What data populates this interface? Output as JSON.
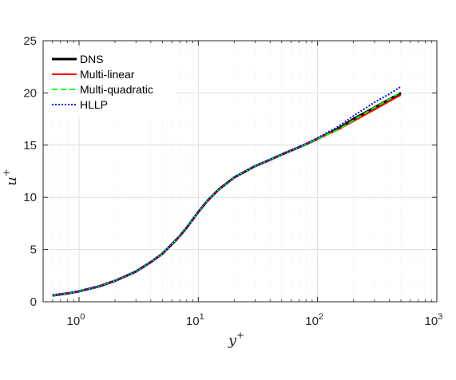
{
  "chart_data": {
    "type": "line",
    "title": "",
    "xlabel": "y+",
    "ylabel": "u+",
    "xscale": "log",
    "xlim": [
      0.5,
      1000
    ],
    "ylim": [
      0,
      25
    ],
    "grid": true,
    "legend_position": "top-left",
    "x_ticks": [
      1,
      10,
      100,
      1000
    ],
    "x_tick_labels": [
      {
        "base": "10",
        "exp": "0"
      },
      {
        "base": "10",
        "exp": "1"
      },
      {
        "base": "10",
        "exp": "2"
      },
      {
        "base": "10",
        "exp": "3"
      }
    ],
    "y_ticks": [
      0,
      5,
      10,
      15,
      20,
      25
    ],
    "y_tick_labels": [
      "0",
      "5",
      "10",
      "15",
      "20",
      "25"
    ],
    "series": [
      {
        "name": "DNS",
        "color": "#000000",
        "style": "solid",
        "x": [
          0.6,
          0.8,
          1,
          1.5,
          2,
          3,
          4,
          5,
          6,
          7,
          8,
          10,
          12,
          15,
          20,
          25,
          30,
          40,
          50,
          70,
          100,
          150,
          200,
          300,
          400,
          500
        ],
        "y": [
          0.6,
          0.8,
          1.0,
          1.5,
          2.0,
          2.9,
          3.8,
          4.6,
          5.5,
          6.3,
          7.1,
          8.6,
          9.7,
          10.8,
          11.9,
          12.5,
          13.0,
          13.6,
          14.1,
          14.8,
          15.6,
          16.6,
          17.5,
          18.6,
          19.4,
          20.0
        ]
      },
      {
        "name": "Multi-linear",
        "color": "#ff0000",
        "style": "solid",
        "x": [
          0.6,
          0.8,
          1,
          1.5,
          2,
          3,
          4,
          5,
          6,
          7,
          8,
          10,
          12,
          15,
          20,
          25,
          30,
          40,
          50,
          70,
          100,
          150,
          200,
          300,
          400,
          500
        ],
        "y": [
          0.6,
          0.8,
          1.0,
          1.5,
          2.0,
          2.9,
          3.8,
          4.6,
          5.5,
          6.3,
          7.1,
          8.6,
          9.7,
          10.8,
          11.9,
          12.5,
          13.0,
          13.6,
          14.1,
          14.8,
          15.6,
          16.5,
          17.3,
          18.4,
          19.2,
          19.8
        ]
      },
      {
        "name": "Multi-quadratic",
        "color": "#00ff00",
        "style": "dashed",
        "x": [
          0.6,
          0.8,
          1,
          1.5,
          2,
          3,
          4,
          5,
          6,
          7,
          8,
          10,
          12,
          15,
          20,
          25,
          30,
          40,
          50,
          70,
          100,
          150,
          200,
          300,
          400,
          500
        ],
        "y": [
          0.6,
          0.8,
          1.0,
          1.5,
          2.0,
          2.9,
          3.8,
          4.6,
          5.5,
          6.3,
          7.1,
          8.6,
          9.7,
          10.8,
          11.9,
          12.5,
          13.0,
          13.6,
          14.1,
          14.8,
          15.6,
          16.5,
          17.4,
          18.6,
          19.4,
          20.1
        ]
      },
      {
        "name": "HLLP",
        "color": "#0000ff",
        "style": "dotted",
        "x": [
          0.6,
          0.8,
          1,
          1.5,
          2,
          3,
          4,
          5,
          6,
          7,
          8,
          10,
          12,
          15,
          20,
          25,
          30,
          40,
          50,
          70,
          100,
          150,
          200,
          300,
          400,
          500
        ],
        "y": [
          0.6,
          0.8,
          1.0,
          1.5,
          2.0,
          2.9,
          3.8,
          4.6,
          5.5,
          6.3,
          7.1,
          8.6,
          9.7,
          10.8,
          11.9,
          12.5,
          13.0,
          13.6,
          14.1,
          14.8,
          15.7,
          16.8,
          17.8,
          19.1,
          19.9,
          20.6
        ]
      }
    ]
  }
}
